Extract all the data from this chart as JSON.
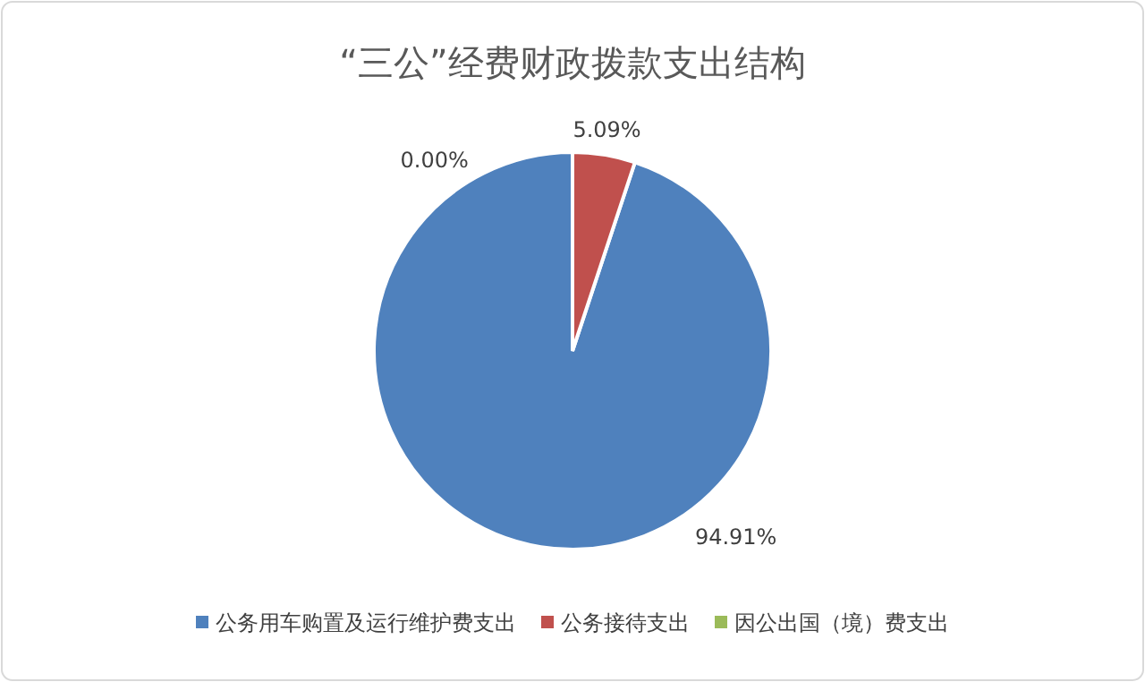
{
  "chart_data": {
    "type": "pie",
    "title": "“三公”经费财政拨款支出结构",
    "categories": [
      "公务用车购置及运行维护费支出",
      "公务接待支出",
      "因公出国（境）费支出"
    ],
    "values": [
      94.91,
      5.09,
      0.0
    ],
    "colors": [
      "#4f81bd",
      "#c0504d",
      "#9bbb59"
    ],
    "value_labels": [
      "94.91%",
      "5.09%",
      "0.00%"
    ],
    "legend": "bottom"
  }
}
